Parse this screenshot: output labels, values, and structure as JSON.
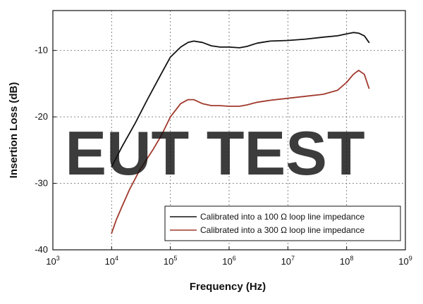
{
  "chart_data": {
    "type": "line",
    "xscale": "log",
    "xlabel": "Frequency (Hz)",
    "ylabel": "Insertion Loss (dB)",
    "xlim": [
      1000,
      1000000000
    ],
    "ylim": [
      -40,
      -4
    ],
    "grid": true,
    "legend_position": "bottom-right",
    "x_ticks": [
      {
        "value": 1000,
        "base": "10",
        "exp": "3"
      },
      {
        "value": 10000,
        "base": "10",
        "exp": "4"
      },
      {
        "value": 100000,
        "base": "10",
        "exp": "5"
      },
      {
        "value": 1000000,
        "base": "10",
        "exp": "6"
      },
      {
        "value": 10000000,
        "base": "10",
        "exp": "7"
      },
      {
        "value": 100000000,
        "base": "10",
        "exp": "8"
      },
      {
        "value": 1000000000,
        "base": "10",
        "exp": "9"
      }
    ],
    "y_ticks": [
      {
        "value": -10,
        "label": "-10"
      },
      {
        "value": -20,
        "label": "-20"
      },
      {
        "value": -30,
        "label": "-30"
      },
      {
        "value": -40,
        "label": "-40"
      }
    ],
    "series": [
      {
        "name": "Calibrated into a 100 Ω loop line impedance",
        "color": "#111111",
        "x": [
          10000,
          15000,
          25000,
          40000,
          70000,
          100000,
          150000,
          200000,
          250000,
          350000,
          500000,
          700000,
          1000000,
          1500000,
          2000000,
          3000000,
          5000000,
          10000000,
          20000000,
          40000000,
          70000000,
          100000000,
          130000000,
          160000000,
          200000000,
          240000000
        ],
        "y": [
          -27.5,
          -24.5,
          -21,
          -17.5,
          -13.5,
          -11,
          -9.5,
          -8.8,
          -8.6,
          -8.8,
          -9.3,
          -9.5,
          -9.5,
          -9.6,
          -9.4,
          -8.9,
          -8.6,
          -8.5,
          -8.3,
          -8.0,
          -7.8,
          -7.5,
          -7.3,
          -7.4,
          -7.8,
          -8.8
        ]
      },
      {
        "name": "Calibrated into a 300 Ω loop line impedance",
        "color": "#a0392c",
        "x": [
          10000,
          12000,
          15000,
          20000,
          30000,
          50000,
          70000,
          100000,
          150000,
          200000,
          250000,
          350000,
          500000,
          700000,
          1000000,
          1500000,
          2000000,
          3000000,
          5000000,
          10000000,
          20000000,
          40000000,
          70000000,
          100000000,
          130000000,
          160000000,
          200000000,
          240000000
        ],
        "y": [
          -37.5,
          -35.5,
          -33.5,
          -31.0,
          -28.0,
          -25.0,
          -22.8,
          -20.0,
          -18.0,
          -17.4,
          -17.4,
          -18.0,
          -18.3,
          -18.3,
          -18.4,
          -18.4,
          -18.2,
          -17.8,
          -17.5,
          -17.2,
          -16.9,
          -16.6,
          -16.0,
          -14.8,
          -13.6,
          -13.0,
          -13.6,
          -15.7
        ]
      }
    ]
  },
  "watermark": "EUT TEST"
}
